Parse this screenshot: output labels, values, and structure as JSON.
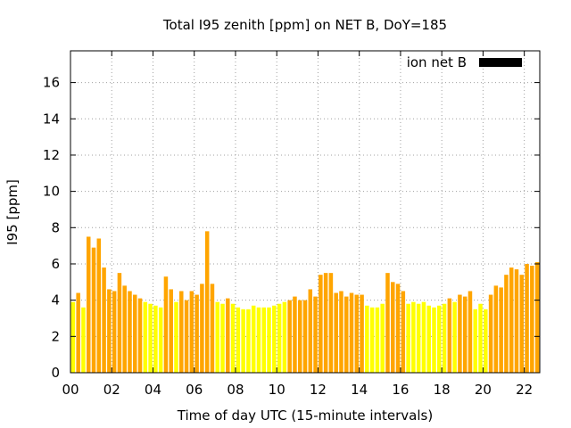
{
  "chart_data": {
    "type": "bar",
    "title": "Total I95 zenith [ppm] on NET B, DoY=185",
    "xlabel": "Time of day UTC (15-minute intervals)",
    "ylabel": "I95 [ppm]",
    "xlim": [
      0,
      22.75
    ],
    "ylim": [
      0,
      17.75
    ],
    "x_tick_values": [
      0,
      2,
      4,
      6,
      8,
      10,
      12,
      14,
      16,
      18,
      20,
      22
    ],
    "x_tick_labels": [
      "00",
      "02",
      "04",
      "06",
      "08",
      "10",
      "12",
      "14",
      "16",
      "18",
      "20",
      "22"
    ],
    "y_ticks": [
      0,
      2,
      4,
      6,
      8,
      10,
      12,
      14,
      16
    ],
    "grid": true,
    "legend": {
      "position": "top-right",
      "label": "ion net B",
      "color": "#000000"
    },
    "bar_interval_hours": 0.25,
    "colors": {
      "low": "#ffff00",
      "high": "#ffa500",
      "threshold": 4.0
    },
    "series": [
      {
        "name": "ion net B",
        "x": [
          0,
          0.25,
          0.5,
          0.75,
          1,
          1.25,
          1.5,
          1.75,
          2,
          2.25,
          2.5,
          2.75,
          3,
          3.25,
          3.5,
          3.75,
          4,
          4.25,
          4.5,
          4.75,
          5,
          5.25,
          5.5,
          5.75,
          6,
          6.25,
          6.5,
          6.75,
          7,
          7.25,
          7.5,
          7.75,
          8,
          8.25,
          8.5,
          8.75,
          9,
          9.25,
          9.5,
          9.75,
          10,
          10.25,
          10.5,
          10.75,
          11,
          11.25,
          11.5,
          11.75,
          12,
          12.25,
          12.5,
          12.75,
          13,
          13.25,
          13.5,
          13.75,
          14,
          14.25,
          14.5,
          14.75,
          15,
          15.25,
          15.5,
          15.75,
          16,
          16.25,
          16.5,
          16.75,
          17,
          17.25,
          17.5,
          17.75,
          18,
          18.25,
          18.5,
          18.75,
          19,
          19.25,
          19.5,
          19.75,
          20,
          20.25,
          20.5,
          20.75,
          21,
          21.25,
          21.5,
          21.75,
          22,
          22.25,
          22.5
        ],
        "values": [
          3.9,
          4.4,
          3.6,
          7.5,
          6.9,
          7.4,
          5.8,
          4.6,
          4.5,
          5.5,
          4.8,
          4.5,
          4.3,
          4.1,
          3.9,
          3.8,
          3.7,
          3.6,
          5.3,
          4.6,
          3.9,
          4.5,
          4.0,
          4.5,
          4.3,
          4.9,
          7.8,
          4.9,
          3.9,
          3.8,
          4.1,
          3.8,
          3.6,
          3.5,
          3.5,
          3.7,
          3.6,
          3.6,
          3.6,
          3.7,
          3.8,
          3.9,
          4.0,
          4.2,
          4.0,
          4.0,
          4.6,
          4.2,
          5.4,
          5.5,
          5.5,
          4.4,
          4.5,
          4.2,
          4.4,
          4.3,
          4.3,
          3.7,
          3.6,
          3.6,
          3.8,
          5.5,
          5.0,
          4.9,
          4.5,
          3.8,
          3.9,
          3.8,
          3.9,
          3.7,
          3.6,
          3.7,
          3.8,
          4.1,
          3.9,
          4.3,
          4.2,
          4.5,
          3.5,
          3.8,
          3.5,
          4.3,
          4.8,
          4.7,
          5.4,
          5.8,
          5.7,
          5.4,
          6.0,
          5.9,
          6.1
        ]
      }
    ]
  }
}
